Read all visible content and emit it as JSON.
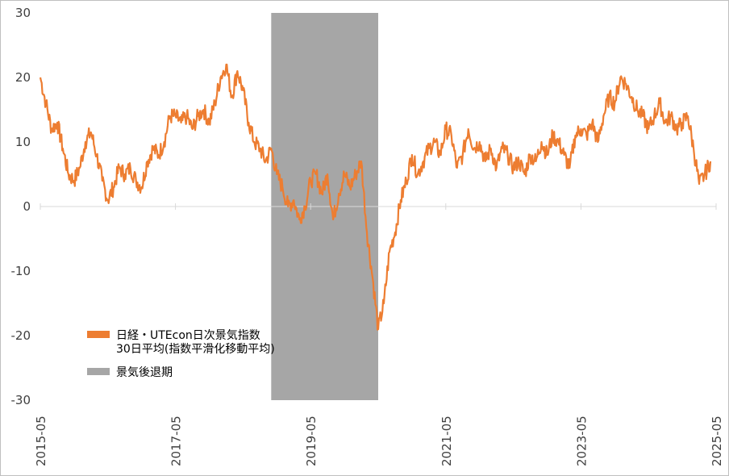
{
  "chart_data": {
    "type": "line",
    "title": "",
    "xlabel": "",
    "ylabel": "",
    "ylim": [
      -30,
      30
    ],
    "y_ticks": [
      "30",
      "20",
      "10",
      "0",
      "-10",
      "-20",
      "-30"
    ],
    "x_ticks": [
      "2015-05",
      "2017-05",
      "2019-05",
      "2021-05",
      "2023-05",
      "2025-05"
    ],
    "x_range": [
      "2015-05",
      "2025-05"
    ],
    "grid": false,
    "legend_position": "bottom-left",
    "series": [
      {
        "name": "日経・UTEcon日次景気指数 30日平均(指数平滑化移動平均)",
        "name_lines": [
          "日経・UTEcon日次景気指数",
          "30日平均(指数平滑化移動平均)"
        ],
        "color": "#ED7D31",
        "points": [
          [
            "2015-05",
            20
          ],
          [
            "2015-06",
            16
          ],
          [
            "2015-07",
            12
          ],
          [
            "2015-08",
            13
          ],
          [
            "2015-09",
            9
          ],
          [
            "2015-10",
            5
          ],
          [
            "2015-11",
            4
          ],
          [
            "2015-12",
            6
          ],
          [
            "2016-01",
            10
          ],
          [
            "2016-02",
            11.5
          ],
          [
            "2016-03",
            8
          ],
          [
            "2016-04",
            4
          ],
          [
            "2016-05",
            1
          ],
          [
            "2016-06",
            3
          ],
          [
            "2016-07",
            6
          ],
          [
            "2016-08",
            5
          ],
          [
            "2016-09",
            6
          ],
          [
            "2016-10",
            4
          ],
          [
            "2016-11",
            3
          ],
          [
            "2016-12",
            7
          ],
          [
            "2017-01",
            9
          ],
          [
            "2017-02",
            8
          ],
          [
            "2017-03",
            10
          ],
          [
            "2017-04",
            14
          ],
          [
            "2017-05",
            14
          ],
          [
            "2017-06",
            13
          ],
          [
            "2017-07",
            14
          ],
          [
            "2017-08",
            12
          ],
          [
            "2017-09",
            14
          ],
          [
            "2017-10",
            15
          ],
          [
            "2017-11",
            13
          ],
          [
            "2017-12",
            16
          ],
          [
            "2018-01",
            20
          ],
          [
            "2018-02",
            22
          ],
          [
            "2018-03",
            17
          ],
          [
            "2018-04",
            21
          ],
          [
            "2018-05",
            18
          ],
          [
            "2018-06",
            13
          ],
          [
            "2018-07",
            10
          ],
          [
            "2018-08",
            9
          ],
          [
            "2018-09",
            7
          ],
          [
            "2018-10",
            9
          ],
          [
            "2018-11",
            5
          ],
          [
            "2018-12",
            3
          ],
          [
            "2019-01",
            0
          ],
          [
            "2019-02",
            1
          ],
          [
            "2019-03",
            -2
          ],
          [
            "2019-04",
            0
          ],
          [
            "2019-05",
            4
          ],
          [
            "2019-06",
            5
          ],
          [
            "2019-07",
            2
          ],
          [
            "2019-08",
            5
          ],
          [
            "2019-09",
            -2
          ],
          [
            "2019-10",
            2
          ],
          [
            "2019-11",
            5
          ],
          [
            "2019-12",
            3
          ],
          [
            "2020-01",
            5
          ],
          [
            "2020-02",
            7
          ],
          [
            "2020-03",
            -4
          ],
          [
            "2020-04",
            -11
          ],
          [
            "2020-05",
            -19
          ],
          [
            "2020-06",
            -15
          ],
          [
            "2020-07",
            -7
          ],
          [
            "2020-08",
            -4
          ],
          [
            "2020-09",
            1
          ],
          [
            "2020-10",
            4
          ],
          [
            "2020-11",
            8
          ],
          [
            "2020-12",
            5
          ],
          [
            "2021-01",
            7
          ],
          [
            "2021-02",
            9
          ],
          [
            "2021-03",
            10
          ],
          [
            "2021-04",
            8
          ],
          [
            "2021-05",
            12
          ],
          [
            "2021-06",
            11
          ],
          [
            "2021-07",
            6
          ],
          [
            "2021-08",
            8
          ],
          [
            "2021-09",
            12
          ],
          [
            "2021-10",
            9
          ],
          [
            "2021-11",
            10
          ],
          [
            "2021-12",
            7
          ],
          [
            "2022-01",
            9
          ],
          [
            "2022-02",
            6
          ],
          [
            "2022-03",
            9
          ],
          [
            "2022-04",
            8
          ],
          [
            "2022-05",
            6
          ],
          [
            "2022-06",
            7
          ],
          [
            "2022-07",
            5
          ],
          [
            "2022-08",
            8
          ],
          [
            "2022-09",
            7
          ],
          [
            "2022-10",
            10
          ],
          [
            "2022-11",
            8
          ],
          [
            "2022-12",
            11
          ],
          [
            "2023-01",
            10
          ],
          [
            "2023-02",
            8
          ],
          [
            "2023-03",
            6
          ],
          [
            "2023-04",
            11
          ],
          [
            "2023-05",
            12
          ],
          [
            "2023-06",
            11
          ],
          [
            "2023-07",
            13
          ],
          [
            "2023-08",
            10
          ],
          [
            "2023-09",
            14
          ],
          [
            "2023-10",
            17
          ],
          [
            "2023-11",
            16
          ],
          [
            "2023-12",
            20
          ],
          [
            "2024-01",
            19
          ],
          [
            "2024-02",
            17
          ],
          [
            "2024-03",
            15
          ],
          [
            "2024-04",
            14
          ],
          [
            "2024-05",
            12
          ],
          [
            "2024-06",
            14
          ],
          [
            "2024-07",
            16
          ],
          [
            "2024-08",
            13
          ],
          [
            "2024-09",
            14
          ],
          [
            "2024-10",
            12
          ],
          [
            "2024-11",
            13
          ],
          [
            "2024-12",
            14
          ],
          [
            "2025-01",
            9
          ],
          [
            "2025-02",
            3.5
          ],
          [
            "2025-03",
            5
          ],
          [
            "2025-04",
            7
          ]
        ]
      }
    ],
    "recession_band": {
      "name": "景気後退期",
      "color": "#A6A6A6",
      "start": "2018-10",
      "end": "2020-05"
    }
  }
}
